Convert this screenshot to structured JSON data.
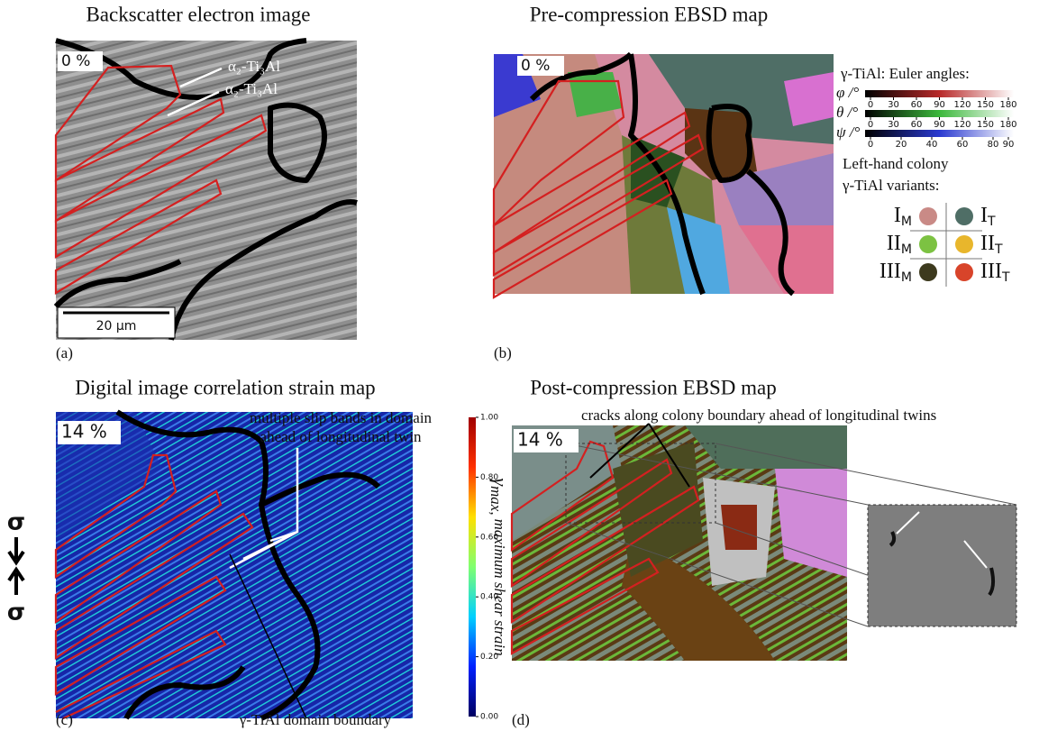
{
  "panels": {
    "a": {
      "title": "Backscatter electron image",
      "strain": "0 %",
      "annotations": [
        "α₂-Ti₃Al",
        "α₂-Ti₃Al"
      ],
      "scale_bar": "20 µm",
      "label": "(a)"
    },
    "b": {
      "title": "Pre-compression EBSD map",
      "strain": "0 %",
      "label": "(b)",
      "euler_legend": {
        "title": "γ-TiAl: Euler angles:",
        "scales": [
          {
            "name": "φ /°",
            "range": [
              0,
              180
            ],
            "ticks": [
              0,
              30,
              60,
              90,
              120,
              150,
              180
            ],
            "colors": [
              "#000000",
              "#b82a2a",
              "#ffffff"
            ]
          },
          {
            "name": "θ /°",
            "range": [
              0,
              180
            ],
            "ticks": [
              0,
              30,
              60,
              90,
              120,
              150,
              180
            ],
            "colors": [
              "#000000",
              "#3cb83c",
              "#ffffff"
            ]
          },
          {
            "name": "ψ /°",
            "range": [
              0,
              90
            ],
            "ticks": [
              0,
              20,
              40,
              60,
              80,
              90
            ],
            "colors": [
              "#000000",
              "#2a3ad0",
              "#ffffff"
            ]
          }
        ]
      },
      "variants": {
        "title": [
          "Left-hand colony",
          "γ-TiAl variants:"
        ],
        "items": [
          {
            "base": "I",
            "sub": "M",
            "color": "#c98a86"
          },
          {
            "base": "I",
            "sub": "T",
            "color": "#4f6e66"
          },
          {
            "base": "II",
            "sub": "M",
            "color": "#7cc242"
          },
          {
            "base": "II",
            "sub": "T",
            "color": "#e8b62c"
          },
          {
            "base": "III",
            "sub": "M",
            "color": "#3d3a1e"
          },
          {
            "base": "III",
            "sub": "T",
            "color": "#d8442a"
          }
        ]
      }
    },
    "c": {
      "title": "Digital image correlation strain map",
      "strain": "14 %",
      "annotation": [
        "multiple slip bands in domain",
        "ahead of longitudinal twin"
      ],
      "boundary_label": "γ-TiAl domain boundary",
      "stress": [
        "σ",
        "σ"
      ],
      "label": "(c)",
      "colorbar": {
        "symbol": "γ",
        "subscript": "max,",
        "text": "maximum shear strain",
        "range": [
          0,
          1
        ],
        "ticks": [
          {
            "value": 0,
            "label": "0.00"
          },
          {
            "value": 0.2,
            "label": "0.20"
          },
          {
            "value": 0.4,
            "label": "0.40"
          },
          {
            "value": 0.6,
            "label": "0.60"
          },
          {
            "value": 0.8,
            "label": "0.80"
          },
          {
            "value": 1,
            "label": "1.00"
          }
        ],
        "colors": [
          "#000060",
          "#0020ff",
          "#00d0ff",
          "#80ff70",
          "#ffe000",
          "#ff3000",
          "#a00000"
        ]
      }
    },
    "d": {
      "title": "Post-compression EBSD map",
      "annotation": "cracks along colony boundary ahead of longitudinal twins",
      "strain": "14 %",
      "label": "(d)"
    }
  }
}
